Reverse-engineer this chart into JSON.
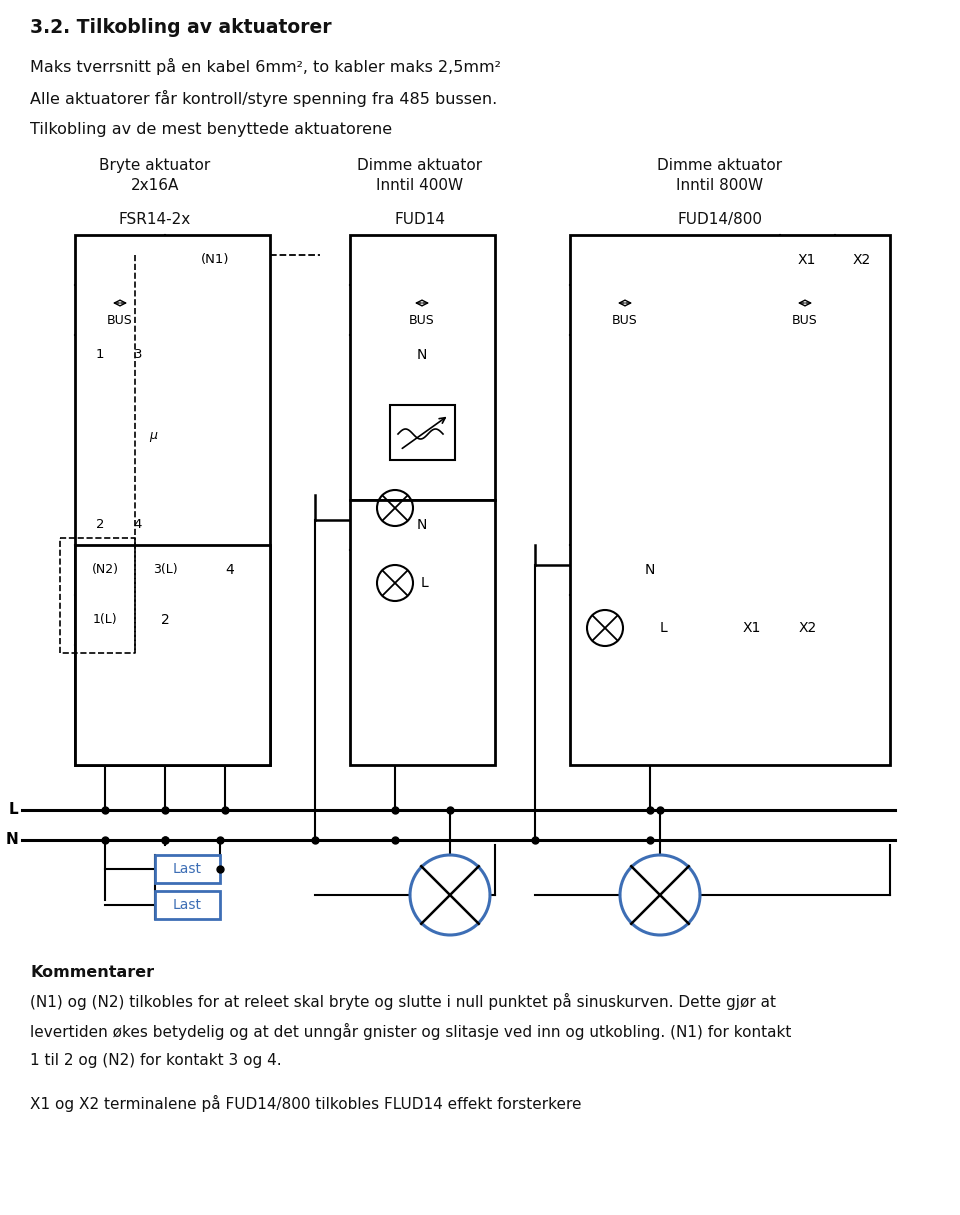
{
  "title": "3.2. Tilkobling av aktuatorer",
  "line1": "Maks tverrsnitt på en kabel 6mm², to kabler maks 2,5mm²",
  "line2": "Alle aktuatorer får kontroll/styre spenning fra 485 bussen.",
  "line3": "Tilkobling av de mest benyttede aktuatorene",
  "col1_head1": "Bryte aktuator",
  "col1_head2": "2x16A",
  "col2_head1": "Dimme aktuator",
  "col2_head2": "Inntil 400W",
  "col3_head1": "Dimme aktuator",
  "col3_head2": "Inntil 800W",
  "col1_label": "FSR14-2x",
  "col2_label": "FUD14",
  "col3_label": "FUD14/800",
  "comment_title": "Kommentarer",
  "comment1": "(N1) og (N2) tilkobles for at releet skal bryte og slutte i null punktet på sinuskurven. Dette gjør at",
  "comment2": "levertiden økes betydelig og at det unngår gnister og slitasje ved inn og utkobling. (N1) for kontakt",
  "comment3": "1 til 2 og (N2) for kontakt 3 og 4.",
  "comment4": "X1 og X2 terminalene på FUD14/800 tilkobles FLUD14 effekt forsterkere",
  "bg_color": "#ffffff",
  "box_color": "#000000",
  "blue_color": "#3d6eb5",
  "text_color": "#1a1a1a"
}
